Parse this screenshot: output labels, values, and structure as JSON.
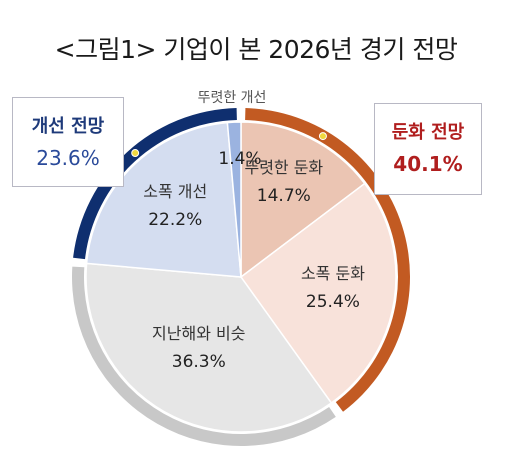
{
  "title": "<그림1> 기업이 본 2026년 경기 전망",
  "groups": [
    {
      "name": "개선 전망",
      "value": "23.6%"
    },
    {
      "name": "둔화 전망",
      "value": "40.1%"
    }
  ],
  "chart_data": {
    "type": "pie",
    "title": "<그림1> 기업이 본 2026년 경기 전망",
    "slices": [
      {
        "label": "뚜렷한 둔화",
        "value": 14.7,
        "display": "14.7%",
        "color": "#ebc5b3"
      },
      {
        "label": "소폭 둔화",
        "value": 25.4,
        "display": "25.4%",
        "color": "#f8e2da"
      },
      {
        "label": "지난해와 비슷",
        "value": 36.3,
        "display": "36.3%",
        "color": "#e6e6e6"
      },
      {
        "label": "소폭 개선",
        "value": 22.2,
        "display": "22.2%",
        "color": "#d4ddf0"
      },
      {
        "label": "뚜렷한 개선",
        "value": 1.4,
        "display": "1.4%",
        "color": "#9bb3e0"
      }
    ],
    "outer_ring": [
      {
        "group": "둔화 전망",
        "value": 40.1,
        "color": "#c25a22"
      },
      {
        "group": "지난해와 비슷",
        "value": 36.3,
        "color": "#c8c8c8"
      },
      {
        "group": "개선 전망",
        "value": 23.6,
        "color": "#0f2f6f"
      }
    ],
    "colors": {
      "ring_dot": "#f0d840"
    }
  }
}
